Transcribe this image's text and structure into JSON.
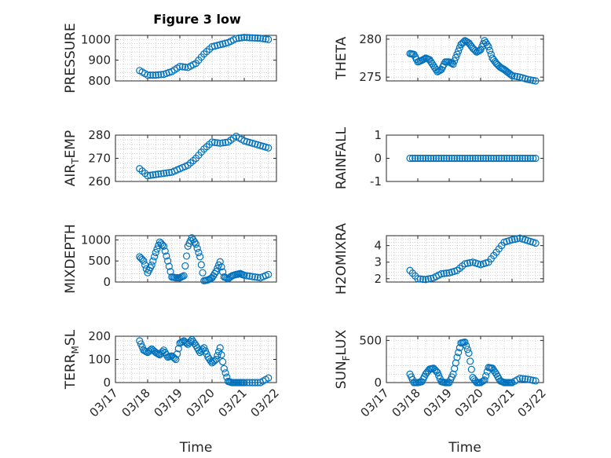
{
  "figure_title": "Figure 3 low",
  "colors": {
    "marker": "#0072BD",
    "axes": "#262626"
  },
  "chart_data": [
    {
      "type": "scatter",
      "ylabel": "PRESSURE",
      "ylabel_sub": null,
      "ylim": [
        800,
        1020
      ],
      "yticks": [
        800,
        900,
        1000
      ],
      "grid": true,
      "x": [
        "03/17 18:00",
        "03/18 00:00",
        "03/18 06:00",
        "03/18 12:00",
        "03/18 18:00",
        "03/19 00:00",
        "03/19 06:00",
        "03/19 12:00",
        "03/19 18:00",
        "03/20 00:00",
        "03/20 06:00",
        "03/20 12:00",
        "03/20 18:00",
        "03/21 00:00",
        "03/21 06:00",
        "03/21 12:00",
        "03/21 18:00"
      ],
      "values": [
        850,
        828,
        828,
        832,
        845,
        870,
        865,
        885,
        930,
        965,
        975,
        985,
        1005,
        1010,
        1008,
        1006,
        1000
      ]
    },
    {
      "type": "scatter",
      "ylabel": "THETA",
      "ylabel_sub": null,
      "ylim": [
        274.5,
        280.5
      ],
      "yticks": [
        275,
        280
      ],
      "grid": true,
      "x": [
        "03/17 18:00",
        "03/17 21:00",
        "03/18 00:00",
        "03/18 03:00",
        "03/18 06:00",
        "03/18 09:00",
        "03/18 12:00",
        "03/18 15:00",
        "03/18 18:00",
        "03/18 21:00",
        "03/19 00:00",
        "03/19 03:00",
        "03/19 06:00",
        "03/19 09:00",
        "03/19 12:00",
        "03/19 15:00",
        "03/19 18:00",
        "03/19 21:00",
        "03/20 00:00",
        "03/20 03:00",
        "03/20 06:00",
        "03/20 09:00",
        "03/20 12:00",
        "03/20 15:00",
        "03/20 18:00",
        "03/20 21:00",
        "03/21 00:00",
        "03/21 06:00",
        "03/21 12:00",
        "03/21 18:00"
      ],
      "values": [
        278.1,
        278.0,
        277.0,
        277.2,
        277.5,
        277.3,
        276.5,
        275.7,
        276.0,
        277.0,
        277.0,
        276.7,
        278.0,
        279.3,
        279.8,
        279.5,
        278.8,
        278.3,
        278.6,
        279.8,
        279.0,
        277.5,
        276.8,
        276.3,
        276.0,
        275.6,
        275.2,
        275.0,
        274.7,
        274.5
      ]
    },
    {
      "type": "scatter",
      "ylabel": "AIR",
      "ylabel_sub": "T",
      "ylabel_tail": "EMP",
      "ylim": [
        260,
        280
      ],
      "yticks": [
        260,
        270,
        280
      ],
      "grid": true,
      "x": [
        "03/17 18:00",
        "03/18 00:00",
        "03/18 06:00",
        "03/18 12:00",
        "03/18 18:00",
        "03/19 00:00",
        "03/19 06:00",
        "03/19 12:00",
        "03/19 18:00",
        "03/20 00:00",
        "03/20 06:00",
        "03/20 12:00",
        "03/20 18:00",
        "03/21 00:00",
        "03/21 06:00",
        "03/21 12:00",
        "03/21 18:00"
      ],
      "values": [
        265.5,
        262.5,
        263.0,
        263.5,
        264.0,
        265.5,
        267.0,
        270.0,
        274.0,
        277.0,
        276.5,
        277.0,
        279.5,
        277.5,
        276.5,
        275.5,
        274.5
      ]
    },
    {
      "type": "scatter",
      "ylabel": "RAINFALL",
      "ylabel_sub": null,
      "ylim": [
        -1,
        1
      ],
      "yticks": [
        -1,
        0,
        1
      ],
      "grid": false,
      "x": [
        "03/17 18:00",
        "03/18 00:00",
        "03/18 06:00",
        "03/18 12:00",
        "03/18 18:00",
        "03/19 00:00",
        "03/19 06:00",
        "03/19 12:00",
        "03/19 18:00",
        "03/20 00:00",
        "03/20 06:00",
        "03/20 12:00",
        "03/20 18:00",
        "03/21 00:00",
        "03/21 06:00",
        "03/21 12:00",
        "03/21 18:00"
      ],
      "values": [
        0,
        0,
        0,
        0,
        0,
        0,
        0,
        0,
        0,
        0,
        0,
        0,
        0,
        0,
        0,
        0,
        0
      ]
    },
    {
      "type": "scatter",
      "ylabel": "MIXDEPTH",
      "ylabel_sub": null,
      "ylim": [
        0,
        1100
      ],
      "yticks": [
        0,
        500,
        1000
      ],
      "grid": true,
      "x": [
        "03/17 18:00",
        "03/17 21:00",
        "03/18 00:00",
        "03/18 03:00",
        "03/18 06:00",
        "03/18 09:00",
        "03/18 12:00",
        "03/18 15:00",
        "03/18 18:00",
        "03/18 21:00",
        "03/19 00:00",
        "03/19 03:00",
        "03/19 06:00",
        "03/19 09:00",
        "03/19 12:00",
        "03/19 15:00",
        "03/19 18:00",
        "03/19 21:00",
        "03/20 00:00",
        "03/20 03:00",
        "03/20 06:00",
        "03/20 09:00",
        "03/20 12:00",
        "03/20 15:00",
        "03/20 18:00",
        "03/20 21:00",
        "03/21 00:00",
        "03/21 06:00",
        "03/21 12:00",
        "03/21 18:00"
      ],
      "values": [
        600,
        500,
        220,
        400,
        700,
        950,
        850,
        500,
        120,
        100,
        100,
        150,
        850,
        1050,
        900,
        600,
        30,
        50,
        100,
        250,
        480,
        120,
        80,
        150,
        180,
        200,
        160,
        130,
        100,
        180
      ]
    },
    {
      "type": "scatter",
      "ylabel": "H2OMIXRA",
      "ylabel_sub": null,
      "ylim": [
        1.8,
        4.6
      ],
      "yticks": [
        2,
        3,
        4
      ],
      "grid": true,
      "x": [
        "03/17 18:00",
        "03/18 00:00",
        "03/18 06:00",
        "03/18 12:00",
        "03/18 18:00",
        "03/19 00:00",
        "03/19 06:00",
        "03/19 12:00",
        "03/19 18:00",
        "03/20 00:00",
        "03/20 06:00",
        "03/20 12:00",
        "03/20 18:00",
        "03/21 00:00",
        "03/21 06:00",
        "03/21 12:00",
        "03/21 18:00"
      ],
      "values": [
        2.5,
        2.0,
        1.95,
        2.05,
        2.3,
        2.35,
        2.5,
        2.9,
        3.0,
        2.85,
        3.0,
        3.6,
        4.2,
        4.35,
        4.45,
        4.3,
        4.15
      ]
    },
    {
      "type": "scatter",
      "ylabel": "TERR",
      "ylabel_sub": "M",
      "ylabel_tail": "SL",
      "ylim": [
        0,
        200
      ],
      "yticks": [
        0,
        100,
        200
      ],
      "grid": true,
      "x": [
        "03/17 18:00",
        "03/17 21:00",
        "03/18 00:00",
        "03/18 03:00",
        "03/18 06:00",
        "03/18 09:00",
        "03/18 12:00",
        "03/18 15:00",
        "03/18 18:00",
        "03/18 21:00",
        "03/19 00:00",
        "03/19 03:00",
        "03/19 06:00",
        "03/19 09:00",
        "03/19 12:00",
        "03/19 15:00",
        "03/19 18:00",
        "03/19 21:00",
        "03/20 00:00",
        "03/20 03:00",
        "03/20 06:00",
        "03/20 09:00",
        "03/20 12:00",
        "03/20 15:00",
        "03/20 18:00",
        "03/20 21:00",
        "03/21 00:00",
        "03/21 06:00",
        "03/21 12:00",
        "03/21 18:00"
      ],
      "values": [
        180,
        140,
        130,
        145,
        130,
        120,
        140,
        110,
        115,
        100,
        170,
        180,
        165,
        185,
        160,
        130,
        150,
        110,
        85,
        100,
        150,
        60,
        5,
        0,
        0,
        0,
        0,
        0,
        0,
        20
      ]
    },
    {
      "type": "scatter",
      "ylabel": "SUN",
      "ylabel_sub": "F",
      "ylabel_tail": "LUX",
      "ylim": [
        0,
        550
      ],
      "yticks": [
        0,
        500
      ],
      "grid": true,
      "x": [
        "03/17 18:00",
        "03/17 21:00",
        "03/18 00:00",
        "03/18 03:00",
        "03/18 06:00",
        "03/18 09:00",
        "03/18 12:00",
        "03/18 15:00",
        "03/18 18:00",
        "03/18 21:00",
        "03/19 00:00",
        "03/19 03:00",
        "03/19 06:00",
        "03/19 09:00",
        "03/19 12:00",
        "03/19 15:00",
        "03/19 18:00",
        "03/19 21:00",
        "03/20 00:00",
        "03/20 03:00",
        "03/20 06:00",
        "03/20 09:00",
        "03/20 12:00",
        "03/20 15:00",
        "03/20 18:00",
        "03/20 21:00",
        "03/21 00:00",
        "03/21 06:00",
        "03/21 12:00",
        "03/21 18:00"
      ],
      "values": [
        100,
        0,
        0,
        10,
        100,
        160,
        170,
        120,
        10,
        0,
        0,
        100,
        300,
        470,
        480,
        350,
        60,
        0,
        0,
        30,
        180,
        170,
        100,
        20,
        0,
        0,
        0,
        50,
        40,
        20
      ]
    }
  ],
  "x_axis": {
    "label": "Time",
    "range": [
      "03/17",
      "03/22"
    ],
    "tick_labels": [
      "03/17",
      "03/18",
      "03/19",
      "03/20",
      "03/21",
      "03/22"
    ]
  }
}
